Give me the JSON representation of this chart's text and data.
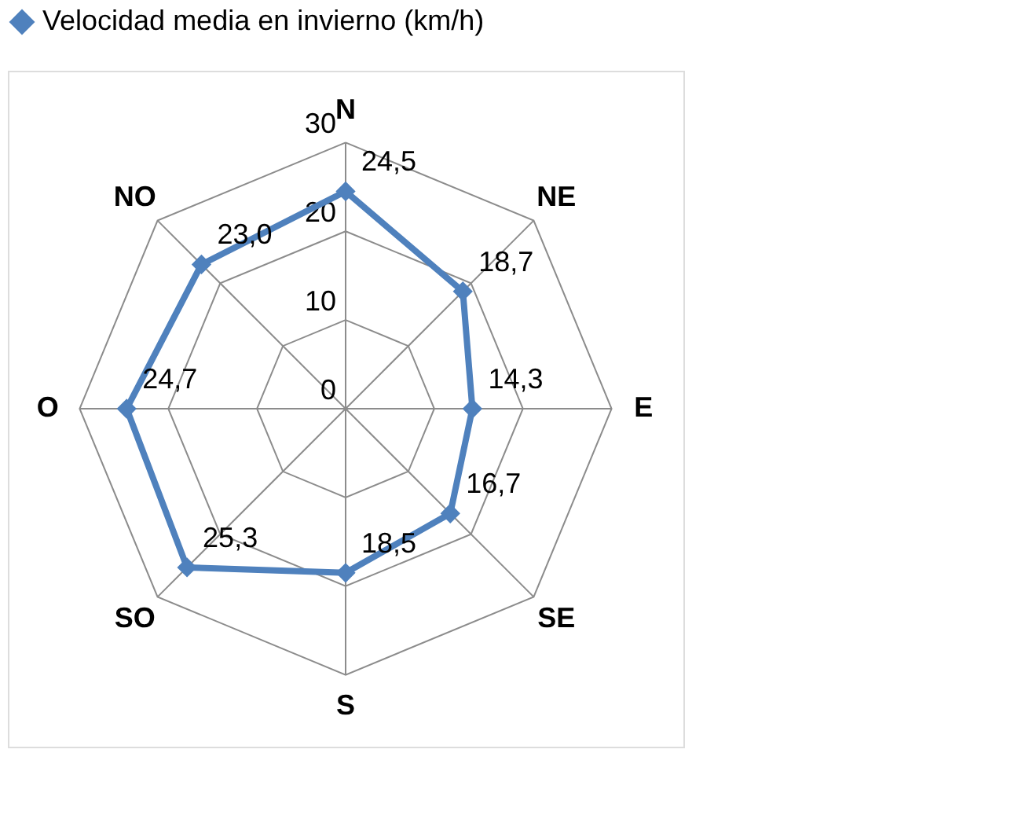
{
  "chart_data": {
    "type": "radar",
    "categories": [
      "N",
      "NE",
      "E",
      "SE",
      "S",
      "SO",
      "O",
      "NO"
    ],
    "series": [
      {
        "name": "Velocidad media en invierno (km/h)",
        "color": "#4f81bd",
        "values": [
          24.5,
          18.7,
          14.3,
          16.7,
          18.5,
          25.3,
          24.7,
          23.0
        ],
        "value_labels": [
          "24,5",
          "18,7",
          "14,3",
          "16,7",
          "18,5",
          "25,3",
          "24,7",
          "23,0"
        ]
      }
    ],
    "ylim": [
      0,
      30
    ],
    "yticks": [
      0,
      10,
      20,
      30
    ],
    "marker": "diamond",
    "legend": "top",
    "grid": true
  }
}
